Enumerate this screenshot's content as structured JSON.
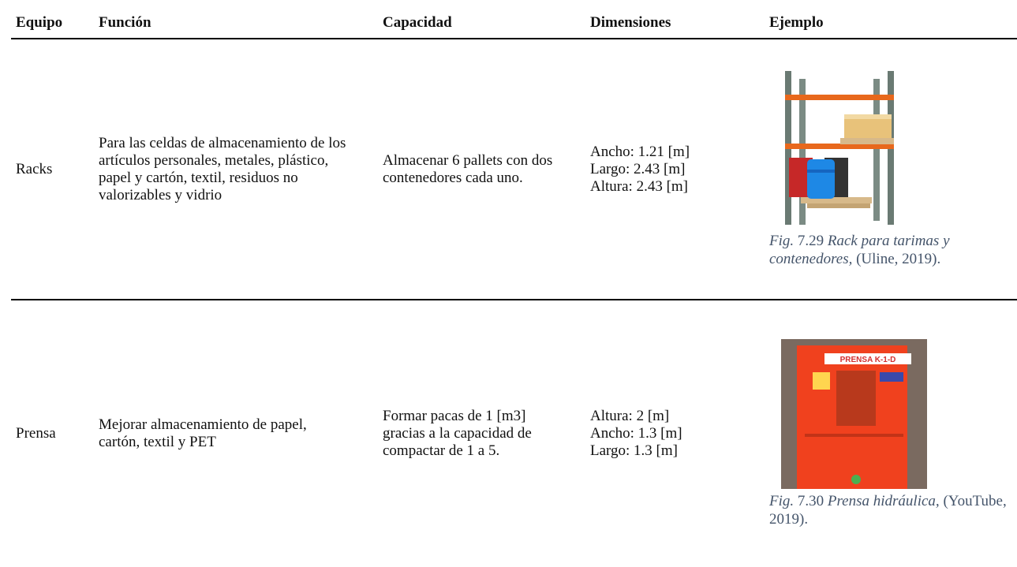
{
  "table": {
    "headers": [
      "Equipo",
      "Función",
      "Capacidad",
      "Dimensiones",
      "Ejemplo"
    ],
    "rows": [
      {
        "equipo": "Racks",
        "funcion": "Para las celdas de almacenamiento de los artículos personales, metales, plástico, papel y cartón, textil, residuos no valorizables y vidrio",
        "capacidad": "Almacenar 6 pallets con dos contenedores cada uno.",
        "dimensiones": [
          "Ancho: 1.21 [m]",
          "Largo: 2.43 [m]",
          "Altura: 2.43 [m]"
        ],
        "caption": {
          "prefix": "Fig.",
          "number": "7.29",
          "title": "Rack para tarimas y contenedores,",
          "source": "(Uline, 2019)."
        }
      },
      {
        "equipo": "Prensa",
        "funcion": "Mejorar almacenamiento de papel, cartón, textil y PET",
        "capacidad": "Formar pacas de 1 [m3] gracias a la capacidad de compactar de 1 a 5.",
        "dimensiones": [
          "Altura: 2 [m]",
          "Ancho: 1.3 [m]",
          "Largo: 1.3 [m]"
        ],
        "caption": {
          "prefix": "Fig.",
          "number": "7.30",
          "title": "Prensa hidráulica,",
          "source": "(YouTube, 2019)."
        },
        "image_label": "PRENSA K-1-D"
      }
    ]
  }
}
